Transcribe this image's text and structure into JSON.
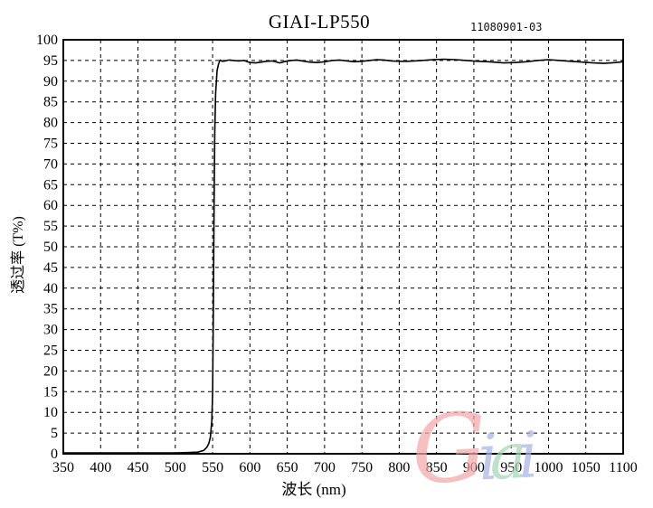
{
  "header": {
    "title": "GIAI-LP550",
    "serial": "11080901-03"
  },
  "axes": {
    "x_label": "波长 (nm)",
    "y_label": "透过率 (T%)"
  },
  "watermark": {
    "text": "Giai",
    "letters": [
      {
        "char": "G",
        "color": "#f3a8a8"
      },
      {
        "char": "i",
        "color": "#aab4e8"
      },
      {
        "char": "a",
        "color": "#a6d8b5"
      },
      {
        "char": "i",
        "color": "#aab4e8"
      }
    ]
  },
  "chart_data": {
    "type": "line",
    "title": "GIAI-LP550",
    "xlabel": "波长 (nm)",
    "ylabel": "透过率 (T%)",
    "xlim": [
      350,
      1100
    ],
    "ylim": [
      0,
      100
    ],
    "x_ticks": [
      350,
      400,
      450,
      500,
      550,
      600,
      650,
      700,
      750,
      800,
      850,
      900,
      950,
      1000,
      1050,
      1100
    ],
    "y_ticks": [
      0,
      5,
      10,
      15,
      20,
      25,
      30,
      35,
      40,
      45,
      50,
      55,
      60,
      65,
      70,
      75,
      80,
      85,
      90,
      95,
      100
    ],
    "grid": {
      "style": "dashed",
      "x_step": 50,
      "y_step": 5
    },
    "legend": null,
    "line_color": "#000000",
    "background": "#ffffff",
    "description": "Longpass filter: ~0% transmission 350-545nm, sharp cut-on at ~550nm, ~95% plateau 560-1100nm",
    "series": [
      {
        "name": "transmission",
        "x": [
          350,
          380,
          410,
          440,
          470,
          500,
          520,
          530,
          538,
          542,
          545,
          547,
          549,
          550,
          551,
          552,
          553,
          554,
          556,
          558,
          560,
          563,
          567,
          572,
          578,
          585,
          592,
          600,
          608,
          615,
          622,
          630,
          640,
          648,
          655,
          663,
          670,
          680,
          690,
          700,
          710,
          720,
          730,
          740,
          750,
          760,
          770,
          780,
          790,
          800,
          810,
          820,
          830,
          845,
          860,
          875,
          890,
          905,
          920,
          940,
          955,
          970,
          985,
          1000,
          1015,
          1030,
          1045,
          1060,
          1075,
          1090,
          1100
        ],
        "y": [
          0.2,
          0.2,
          0.2,
          0.2,
          0.2,
          0.2,
          0.3,
          0.4,
          0.8,
          1.5,
          2.5,
          4,
          8,
          15,
          35,
          60,
          78,
          87,
          92.5,
          94.2,
          95.1,
          94.8,
          94.9,
          95.1,
          95.0,
          94.9,
          95.0,
          94.5,
          94.4,
          94.6,
          94.8,
          94.9,
          94.4,
          94.8,
          95.0,
          95.1,
          94.9,
          94.6,
          94.5,
          94.7,
          95.0,
          95.1,
          94.9,
          94.7,
          94.8,
          95.0,
          95.2,
          95.1,
          94.9,
          94.8,
          94.8,
          94.9,
          95.0,
          95.2,
          95.3,
          95.2,
          95.0,
          94.8,
          94.7,
          94.4,
          94.5,
          94.7,
          95.0,
          95.2,
          95.0,
          94.8,
          94.6,
          94.4,
          94.3,
          94.5,
          94.7
        ]
      }
    ]
  }
}
